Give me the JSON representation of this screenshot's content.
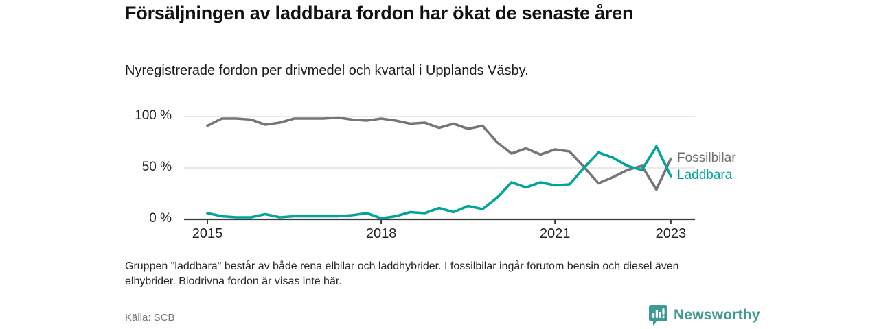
{
  "header": {
    "title": "Försäljningen av laddbara fordon har ökat de senaste åren",
    "subtitle": "Nyregistrerade fordon per drivmedel och kvartal i Upplands Väsby."
  },
  "chart_data": {
    "type": "line",
    "title": "Försäljningen av laddbara fordon har ökat de senaste åren",
    "subtitle": "Nyregistrerade fordon per drivmedel och kvartal i Upplands Väsby.",
    "x_unit": "kvartal",
    "quarters": [
      "2015 K1",
      "2015 K2",
      "2015 K3",
      "2015 K4",
      "2016 K1",
      "2016 K2",
      "2016 K3",
      "2016 K4",
      "2017 K1",
      "2017 K2",
      "2017 K3",
      "2017 K4",
      "2018 K1",
      "2018 K2",
      "2018 K3",
      "2018 K4",
      "2019 K1",
      "2019 K2",
      "2019 K3",
      "2019 K4",
      "2020 K1",
      "2020 K2",
      "2020 K3",
      "2020 K4",
      "2021 K1",
      "2021 K2",
      "2021 K3",
      "2021 K4",
      "2022 K1",
      "2022 K2",
      "2022 K3",
      "2022 K4",
      "2023 K1"
    ],
    "series": [
      {
        "name": "Fossilbilar",
        "color": "#757575",
        "label_color": "#6e6e6e",
        "values": [
          91,
          98,
          98,
          97,
          92,
          94,
          98,
          98,
          98,
          99,
          97,
          96,
          98,
          96,
          93,
          94,
          89,
          93,
          88,
          91,
          75,
          64,
          69,
          63,
          68,
          66,
          51,
          35,
          41,
          48,
          52,
          29,
          59
        ]
      },
      {
        "name": "Laddbara",
        "color": "#00a49b",
        "label_color": "#00a49b",
        "values": [
          6,
          3,
          2,
          2,
          5,
          2,
          3,
          3,
          3,
          3,
          4,
          6,
          1,
          3,
          7,
          6,
          11,
          7,
          13,
          10,
          21,
          36,
          31,
          36,
          33,
          34,
          50,
          65,
          60,
          52,
          48,
          71,
          42
        ]
      }
    ],
    "y_axis": {
      "ticks": [
        0,
        50,
        100
      ],
      "suffix": " %",
      "range": [
        0,
        100
      ]
    },
    "x_ticks": [
      {
        "label": "2015",
        "quarter_index": 0
      },
      {
        "label": "2018",
        "quarter_index": 12
      },
      {
        "label": "2021",
        "quarter_index": 24
      },
      {
        "label": "2023",
        "quarter_index": 32
      }
    ],
    "grid": "horizontal",
    "legend_position": "line-end-labels"
  },
  "footnote": {
    "text": "Gruppen \"laddbara\" består av både rena elbilar och laddhybrider. I fossilbilar ingår förutom bensin och diesel även elhybrider. Biodrivna fordon är visas inte här."
  },
  "source": {
    "label": "Källa: SCB"
  },
  "branding": {
    "name": "Newsworthy",
    "color": "#3e9a93",
    "icon": "bar-chart-speech-bubble-icon"
  }
}
